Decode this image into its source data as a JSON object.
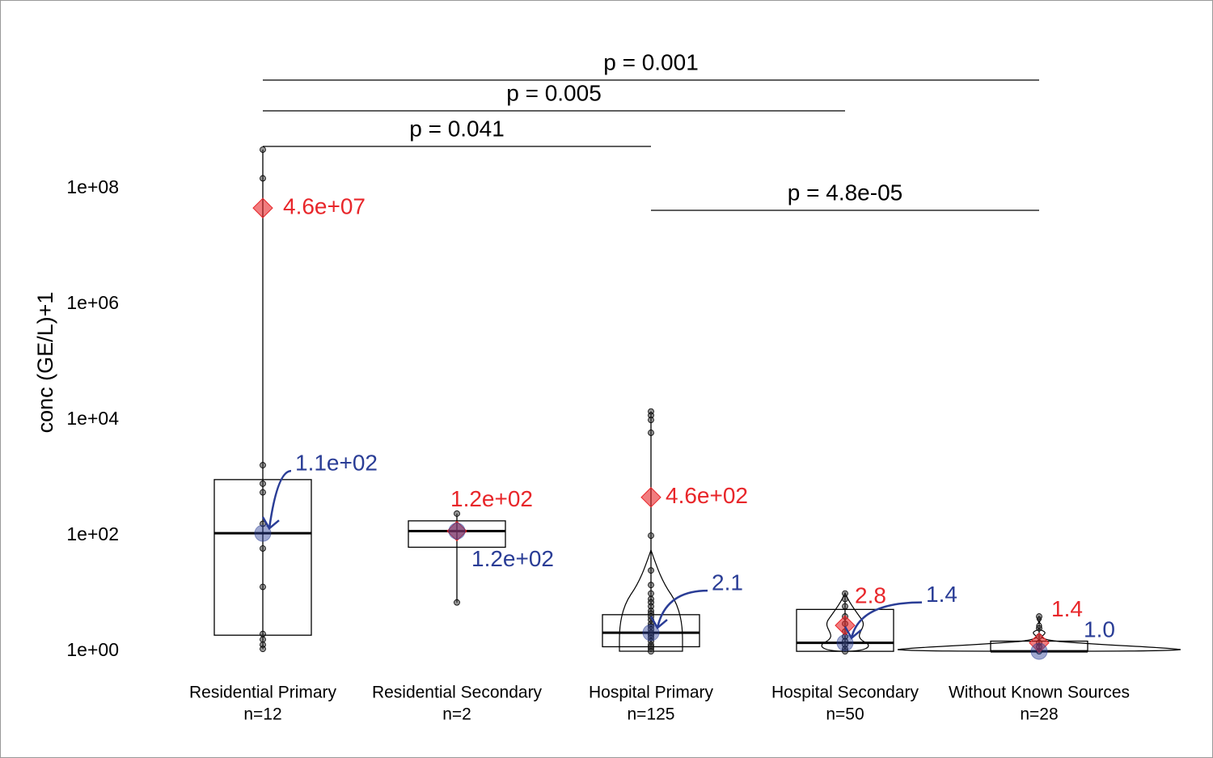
{
  "chart_data": {
    "type": "box",
    "y_label": "conc (GE/L)+1",
    "log_y": true,
    "ylim": [
      0.6,
      2000000000
    ],
    "yticks": [
      {
        "value": 1,
        "label": "1e+00"
      },
      {
        "value": 100,
        "label": "1e+02"
      },
      {
        "value": 10000,
        "label": "1e+04"
      },
      {
        "value": 1000000,
        "label": "1e+06"
      },
      {
        "value": 100000000,
        "label": "1e+08"
      }
    ],
    "categories": [
      "Residential Primary",
      "Residential Secondary",
      "Hospital Primary",
      "Hospital Secondary",
      "Without Known Sources"
    ],
    "n_labels": [
      "n=12",
      "n=2",
      "n=125",
      "n=50",
      "n=28"
    ],
    "mean_color": "#e8262a",
    "median_color": "#2a3d96",
    "groups": [
      {
        "q1": 1.9,
        "median": 110,
        "q3": 930,
        "whisker_low": 1.1,
        "whisker_high": 470000000,
        "mean": 46000000,
        "mean_label": "4.6e+07",
        "median_label": "1.1e+02",
        "points": [
          470000000,
          150000000,
          1650,
          790,
          560,
          160,
          60,
          13,
          2.0,
          1.6,
          1.3,
          1.1
        ]
      },
      {
        "q1": 63,
        "median": 120,
        "q3": 180,
        "whisker_low": 7,
        "whisker_high": 240,
        "mean": 120,
        "mean_label": "1.2e+02",
        "median_label": "1.2e+02",
        "points": [
          240,
          7
        ]
      },
      {
        "q1": 1.2,
        "median": 2.1,
        "q3": 4.3,
        "whisker_low": 1,
        "whisker_high": 14000,
        "mean": 460,
        "mean_label": "4.6e+02",
        "median_label": "2.1",
        "points": [
          14000,
          12000,
          10000,
          6000,
          100,
          25,
          14,
          10,
          8,
          7,
          6,
          5,
          4.5,
          4,
          3.5,
          3,
          2.7,
          2.4,
          2.1,
          1.9,
          1.7,
          1.5,
          1.3,
          1.2,
          1.1,
          1
        ]
      },
      {
        "q1": 1,
        "median": 1.4,
        "q3": 5.3,
        "whisker_low": 1,
        "whisker_high": 10,
        "mean": 2.8,
        "mean_label": "2.8",
        "median_label": "1.4",
        "points": [
          10,
          8,
          6,
          4,
          3,
          2.2,
          1.8,
          1.5,
          1.3,
          1.1,
          1
        ]
      },
      {
        "q1": 1,
        "median": 1.0,
        "q3": 1.5,
        "whisker_low": 1,
        "whisker_high": 4,
        "mean": 1.4,
        "mean_label": "1.4",
        "median_label": "1.0",
        "points": [
          4,
          2.5,
          1.8,
          1.4,
          1.2,
          1
        ]
      }
    ],
    "comparisons": [
      {
        "label": "p = 0.001",
        "between": [
          "Residential Primary",
          "Without Known Sources"
        ]
      },
      {
        "label": "p = 0.005",
        "between": [
          "Residential Primary",
          "Hospital Secondary"
        ]
      },
      {
        "label": "p = 0.041",
        "between": [
          "Residential Primary",
          "Hospital Primary"
        ]
      },
      {
        "label": "p = 4.8e-05",
        "between": [
          "Hospital Primary",
          "Without Known Sources"
        ]
      }
    ]
  }
}
